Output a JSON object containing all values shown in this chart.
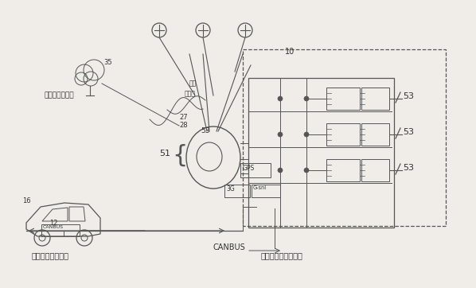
{
  "bg_color": "#f0ede8",
  "line_color": "#555555",
  "labels": {
    "internet": "インターネット",
    "vehicle_controller": "車両コントローラ",
    "canbus": "CANBUS",
    "microprocessor": "マイクロプロセッサ",
    "transmission": "送信",
    "reception": "受信機",
    "num_10": "10",
    "num_35": "35",
    "num_51": "51",
    "num_53": "53",
    "num_27": "27",
    "num_28": "28",
    "num_16": "16",
    "num_12": "12"
  }
}
